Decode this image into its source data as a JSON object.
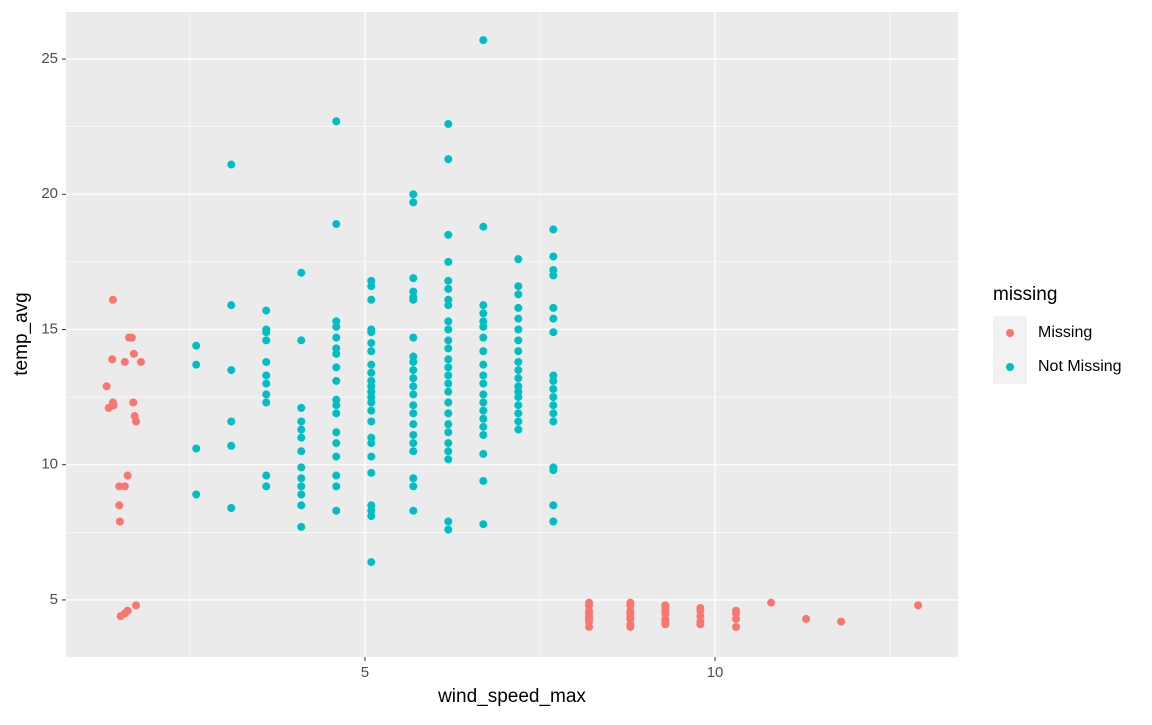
{
  "chart_data": {
    "type": "scatter",
    "x_label": "wind_speed_max",
    "y_label": "temp_avg",
    "legend_title": "missing",
    "legend_position": "right",
    "xlim": [
      0.73,
      13.47
    ],
    "ylim": [
      2.89,
      26.74
    ],
    "xticks": [
      5,
      10
    ],
    "yticks": [
      5,
      10,
      15,
      20,
      25
    ],
    "x_minor_ticks": [
      2.5,
      7.5,
      12.5
    ],
    "y_minor_ticks": [
      7.5,
      12.5,
      17.5,
      22.5
    ],
    "grid": true,
    "series": [
      {
        "name": "Missing",
        "color": "#F8766D",
        "x": [
          1.4,
          1.39,
          1.31,
          1.4,
          1.34,
          1.41,
          1.63,
          1.67,
          1.57,
          1.7,
          1.8,
          1.69,
          1.71,
          1.73,
          1.61,
          1.49,
          1.57,
          1.49,
          1.5,
          1.73,
          1.51,
          1.57,
          1.61,
          8.2,
          8.2,
          8.2,
          8.2,
          8.2,
          8.2,
          8.2,
          8.2,
          8.79,
          8.79,
          8.79,
          8.79,
          8.79,
          8.79,
          8.79,
          8.79,
          9.29,
          9.29,
          9.29,
          9.29,
          9.29,
          9.29,
          9.29,
          9.79,
          9.79,
          9.79,
          9.79,
          9.79,
          10.3,
          10.3,
          10.3,
          10.3,
          10.8,
          11.3,
          11.8,
          12.9
        ],
        "values": [
          16.1,
          13.9,
          12.9,
          12.3,
          12.1,
          12.2,
          14.7,
          14.7,
          13.8,
          14.1,
          13.8,
          12.3,
          11.8,
          11.6,
          9.6,
          9.2,
          9.2,
          8.5,
          7.9,
          4.8,
          4.4,
          4.5,
          4.6,
          4.9,
          4.8,
          4.6,
          4.5,
          4.4,
          4.3,
          4.2,
          4.0,
          4.9,
          4.8,
          4.6,
          4.5,
          4.4,
          4.3,
          4.1,
          4.0,
          4.8,
          4.7,
          4.6,
          4.5,
          4.3,
          4.2,
          4.1,
          4.7,
          4.6,
          4.4,
          4.2,
          4.1,
          4.6,
          4.5,
          4.3,
          4.0,
          4.9,
          4.3,
          4.2,
          4.8
        ]
      },
      {
        "name": "Not Missing",
        "color": "#00BFC4",
        "x": [
          2.59,
          2.59,
          2.59,
          2.59,
          3.09,
          3.09,
          3.09,
          3.09,
          3.09,
          3.09,
          3.59,
          3.59,
          3.59,
          3.59,
          3.59,
          3.59,
          3.59,
          3.59,
          3.59,
          3.59,
          3.59,
          4.09,
          4.09,
          4.09,
          4.09,
          4.09,
          4.09,
          4.09,
          4.09,
          4.09,
          4.09,
          4.09,
          4.09,
          4.09,
          4.59,
          4.59,
          4.59,
          4.59,
          4.59,
          4.59,
          4.59,
          4.59,
          4.59,
          4.59,
          4.59,
          4.59,
          4.59,
          4.59,
          4.59,
          4.59,
          4.59,
          4.59,
          5.09,
          5.09,
          5.09,
          5.09,
          5.09,
          5.09,
          5.09,
          5.09,
          5.09,
          5.09,
          5.09,
          5.09,
          5.09,
          5.09,
          5.09,
          5.09,
          5.09,
          5.09,
          5.09,
          5.09,
          5.09,
          5.09,
          5.09,
          5.09,
          5.69,
          5.69,
          5.69,
          5.69,
          5.69,
          5.69,
          5.69,
          5.69,
          5.69,
          5.69,
          5.69,
          5.69,
          5.69,
          5.69,
          5.69,
          5.69,
          5.69,
          5.69,
          5.69,
          5.69,
          5.69,
          5.69,
          6.19,
          6.19,
          6.19,
          6.19,
          6.19,
          6.19,
          6.19,
          6.19,
          6.19,
          6.19,
          6.19,
          6.19,
          6.19,
          6.19,
          6.19,
          6.19,
          6.19,
          6.19,
          6.19,
          6.19,
          6.19,
          6.19,
          6.19,
          6.19,
          6.19,
          6.19,
          6.69,
          6.69,
          6.69,
          6.69,
          6.69,
          6.69,
          6.69,
          6.69,
          6.69,
          6.69,
          6.69,
          6.69,
          6.69,
          6.69,
          6.69,
          6.69,
          6.69,
          6.69,
          6.69,
          6.69,
          7.19,
          7.19,
          7.19,
          7.19,
          7.19,
          7.19,
          7.19,
          7.19,
          7.19,
          7.19,
          7.19,
          7.19,
          7.19,
          7.19,
          7.19,
          7.19,
          7.19,
          7.19,
          7.69,
          7.69,
          7.69,
          7.69,
          7.69,
          7.69,
          7.69,
          7.69,
          7.69,
          7.69,
          7.69,
          7.69,
          7.69,
          7.69,
          7.69,
          7.69,
          7.69,
          7.69
        ],
        "values": [
          14.4,
          13.7,
          10.6,
          8.9,
          21.1,
          15.9,
          13.5,
          11.6,
          10.7,
          8.4,
          15.7,
          15.0,
          14.9,
          14.6,
          13.8,
          13.3,
          13.0,
          12.6,
          12.3,
          9.6,
          9.2,
          17.1,
          14.6,
          12.1,
          11.6,
          11.3,
          11.0,
          10.5,
          9.9,
          9.5,
          9.2,
          8.9,
          8.5,
          7.7,
          22.7,
          18.9,
          15.3,
          15.1,
          14.7,
          14.3,
          14.1,
          13.6,
          13.1,
          12.4,
          12.2,
          11.9,
          11.2,
          10.8,
          10.3,
          9.6,
          9.2,
          8.3,
          16.8,
          16.6,
          16.1,
          15.0,
          14.9,
          14.5,
          14.2,
          13.7,
          13.4,
          13.1,
          12.9,
          12.7,
          12.5,
          12.3,
          12.0,
          11.6,
          11.0,
          10.8,
          10.3,
          9.7,
          8.5,
          8.3,
          8.1,
          6.4,
          20.0,
          19.7,
          16.9,
          16.4,
          16.2,
          16.1,
          14.7,
          14.0,
          13.8,
          13.5,
          13.2,
          12.9,
          12.6,
          12.2,
          11.9,
          11.5,
          11.1,
          10.8,
          10.5,
          9.5,
          9.2,
          8.3,
          22.6,
          21.3,
          18.5,
          17.5,
          16.8,
          16.5,
          16.1,
          15.9,
          15.3,
          15.0,
          14.6,
          14.3,
          13.9,
          13.6,
          13.3,
          13.0,
          12.7,
          12.3,
          11.9,
          11.5,
          11.2,
          10.8,
          10.5,
          10.2,
          7.9,
          7.6,
          25.7,
          18.8,
          15.9,
          15.6,
          15.3,
          15.1,
          14.7,
          14.2,
          13.7,
          13.3,
          13.0,
          12.6,
          12.3,
          12.0,
          11.7,
          11.4,
          11.1,
          10.4,
          9.4,
          7.8,
          17.6,
          16.6,
          16.3,
          15.8,
          15.4,
          15.0,
          14.6,
          14.2,
          13.8,
          13.5,
          13.2,
          12.9,
          12.7,
          12.5,
          12.2,
          11.9,
          11.6,
          11.3,
          18.7,
          17.7,
          17.2,
          17.0,
          15.8,
          15.4,
          14.9,
          13.3,
          13.1,
          12.8,
          12.5,
          12.2,
          11.9,
          11.6,
          9.9,
          9.8,
          8.5,
          7.9
        ]
      }
    ]
  }
}
